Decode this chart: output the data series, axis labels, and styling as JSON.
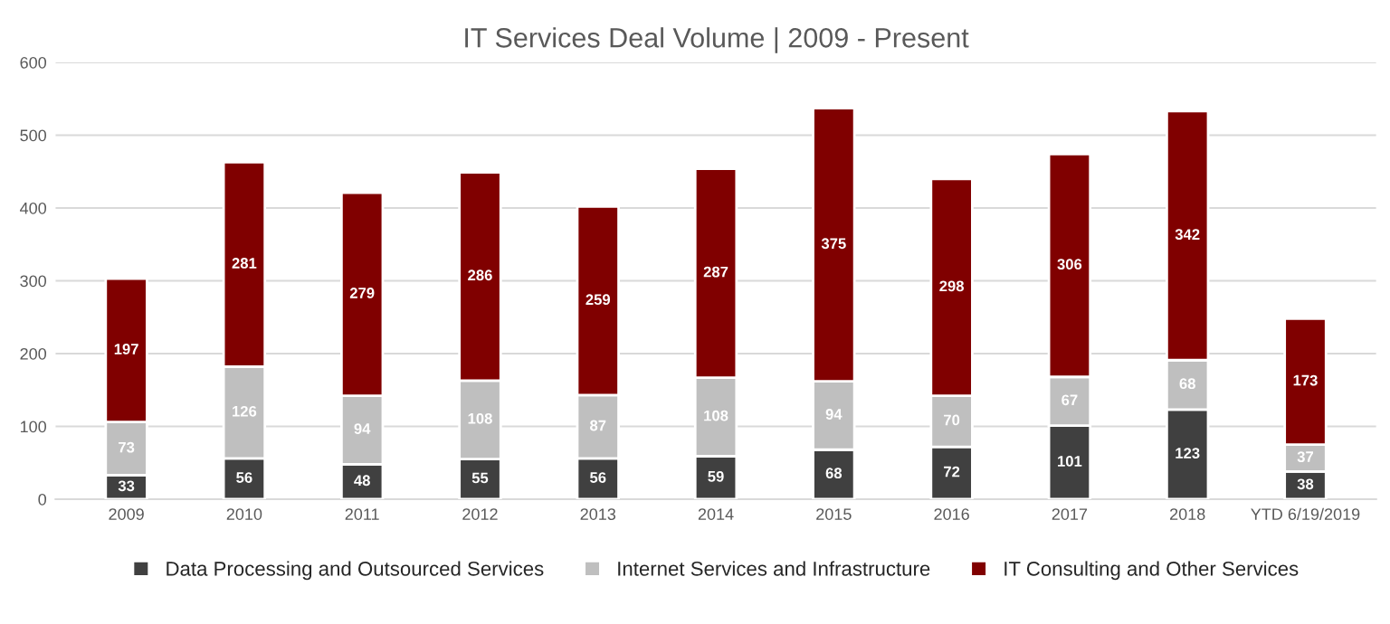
{
  "chart_data": {
    "type": "bar",
    "title": "IT Services Deal Volume | 2009 - Present",
    "categories": [
      "2009",
      "2010",
      "2011",
      "2012",
      "2013",
      "2014",
      "2015",
      "2016",
      "2017",
      "2018",
      "YTD 6/19/2019"
    ],
    "series": [
      {
        "name": "Data Processing and Outsourced Services",
        "color": "#404040",
        "values": [
          33,
          56,
          48,
          55,
          56,
          59,
          68,
          72,
          101,
          123,
          38
        ]
      },
      {
        "name": "Internet Services and Infrastructure",
        "color": "#bfbfbf",
        "values": [
          73,
          126,
          94,
          108,
          87,
          108,
          94,
          70,
          67,
          68,
          37
        ]
      },
      {
        "name": "IT Consulting and Other Services",
        "color": "#800000",
        "values": [
          197,
          281,
          279,
          286,
          259,
          287,
          375,
          298,
          306,
          342,
          173
        ]
      }
    ],
    "stacked": true,
    "data_labels": true,
    "ylim": [
      0,
      600
    ],
    "yticks": [
      0,
      100,
      200,
      300,
      400,
      500,
      600
    ],
    "grid": "y",
    "legend": "bottom"
  }
}
